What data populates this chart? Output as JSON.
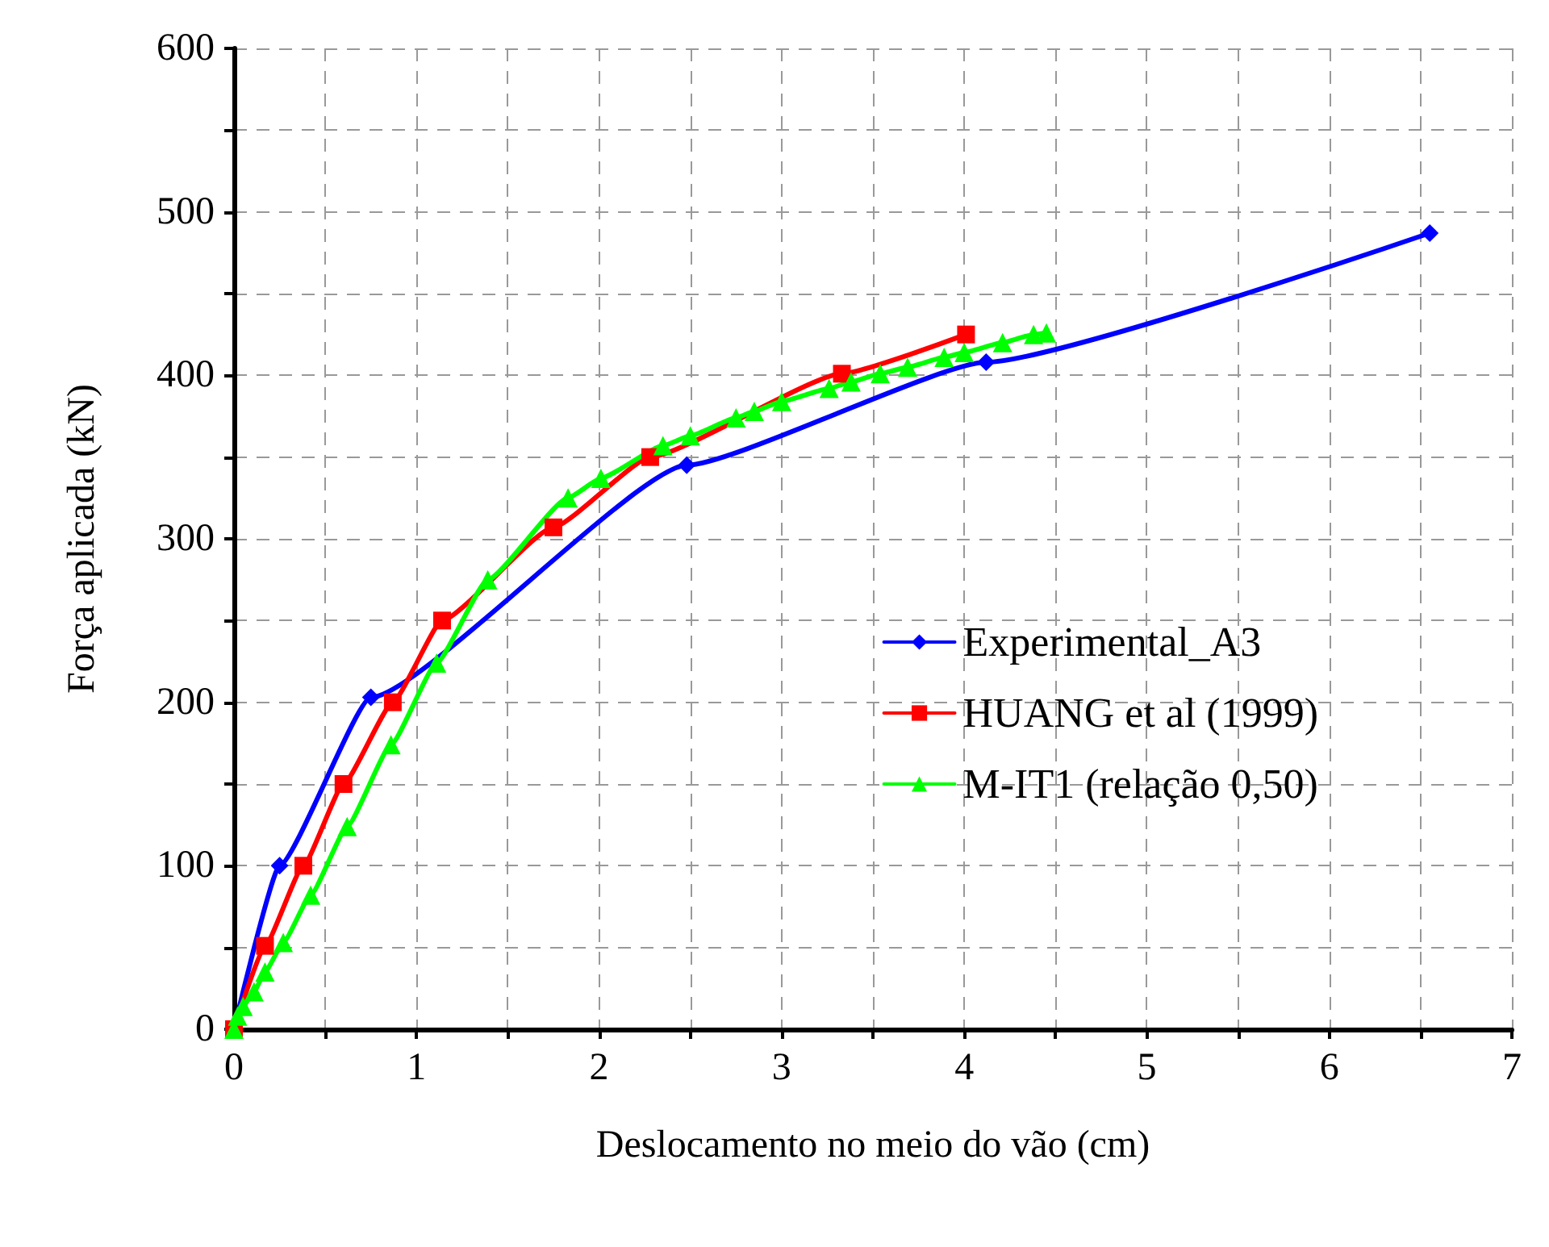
{
  "chart_data": {
    "type": "line",
    "xlabel": "Deslocamento no meio do vão (cm)",
    "ylabel": "Força aplicada (kN)",
    "xlim": [
      0,
      7
    ],
    "xticks": [
      0,
      {
        "value": 0.5,
        "label": null
      },
      1,
      {
        "value": 1.5,
        "label": null
      },
      2,
      {
        "value": 2.5,
        "label": null
      },
      3,
      {
        "value": 3.5,
        "label": null
      },
      4,
      {
        "value": 4.5,
        "label": null
      },
      5,
      {
        "value": 5.5,
        "label": null
      },
      6,
      {
        "value": 6.5,
        "label": null
      },
      7
    ],
    "ylim": [
      0,
      600
    ],
    "yticks": [
      0,
      {
        "value": 50,
        "label": null
      },
      100,
      {
        "value": 150,
        "label": null
      },
      200,
      {
        "value": 250,
        "label": null
      },
      300,
      {
        "value": 350,
        "label": null
      },
      400,
      {
        "value": 450,
        "label": null
      },
      500,
      {
        "value": 550,
        "label": null
      },
      600
    ],
    "grid": true,
    "legend": "right",
    "line_style": "solid",
    "series": [
      {
        "name": "Experimental_A3",
        "color": "#0000ff",
        "marker": "diamond",
        "x": [
          0,
          0.25,
          0.75,
          2.48,
          4.12,
          6.55
        ],
        "values": [
          0,
          100,
          203,
          345,
          408,
          487
        ]
      },
      {
        "name": "HUANG et al (1999)",
        "color": "#ff0000",
        "marker": "square",
        "x": [
          0,
          0.17,
          0.38,
          0.6,
          0.87,
          1.14,
          1.75,
          2.28,
          3.33,
          4.01
        ],
        "values": [
          0,
          51,
          100,
          150,
          200,
          250,
          307,
          350,
          401,
          425
        ]
      },
      {
        "name": "M-IT1 (relação 0,50)",
        "color": "#00ff00",
        "marker": "triangle",
        "x": [
          0,
          0.02,
          0.05,
          0.11,
          0.17,
          0.27,
          0.42,
          0.62,
          0.86,
          1.11,
          1.39,
          1.83,
          2.01,
          2.35,
          2.5,
          2.75,
          2.85,
          3.0,
          3.26,
          3.38,
          3.54,
          3.69,
          3.89,
          4.0,
          4.21,
          4.38,
          4.45
        ],
        "values": [
          0,
          8,
          14,
          23,
          35,
          53,
          82,
          124,
          174,
          224,
          275,
          325,
          337,
          357,
          363,
          374,
          378,
          384,
          392,
          396,
          401,
          405,
          411,
          414,
          420,
          425,
          426
        ]
      }
    ]
  }
}
